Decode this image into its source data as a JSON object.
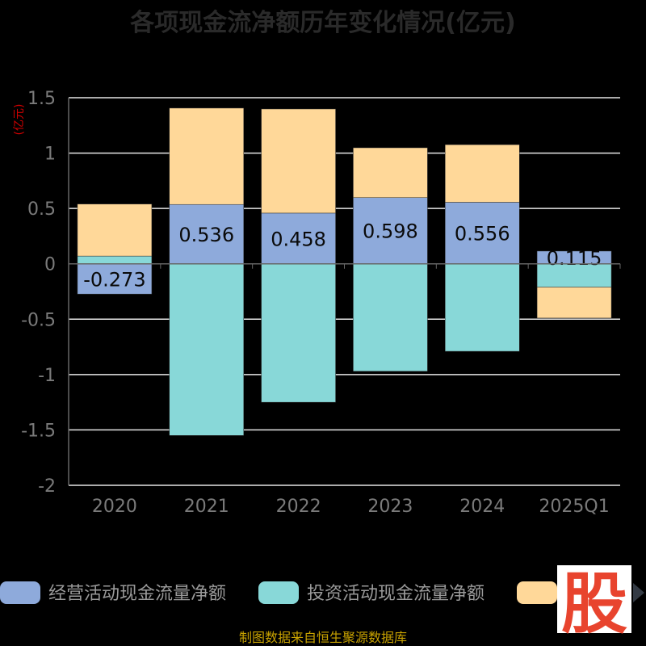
{
  "title": "各项现金流净额历年变化情况(亿元)",
  "unit_label": "(亿元)",
  "footer": "制图数据来自恒生聚源数据库",
  "watermark": "股",
  "chart_data": {
    "type": "bar",
    "stacked": true,
    "categories": [
      "2020",
      "2021",
      "2022",
      "2023",
      "2024",
      "2025Q1"
    ],
    "ylim": [
      -2,
      1.5
    ],
    "y_ticks": [
      "1.5",
      "1",
      "0.5",
      "0",
      "-0.5",
      "-1",
      "-1.5",
      "-2"
    ],
    "grid": true,
    "legend_position": "bottom",
    "series": [
      {
        "name": "经营活动现金流量净额",
        "color": "#8eaadb",
        "values": [
          -0.273,
          0.536,
          0.458,
          0.598,
          0.556,
          0.115
        ],
        "labels": [
          "-0.273",
          "0.536",
          "0.458",
          "0.598",
          "0.556",
          "0.115"
        ]
      },
      {
        "name": "投资活动现金流量净额",
        "color": "#88d8d8",
        "values": [
          0.07,
          -1.55,
          -1.25,
          -0.97,
          -0.79,
          -0.21
        ]
      },
      {
        "name": "",
        "color": "#ffd899",
        "values": [
          0.47,
          0.87,
          0.94,
          0.45,
          0.52,
          -0.28
        ]
      }
    ]
  }
}
